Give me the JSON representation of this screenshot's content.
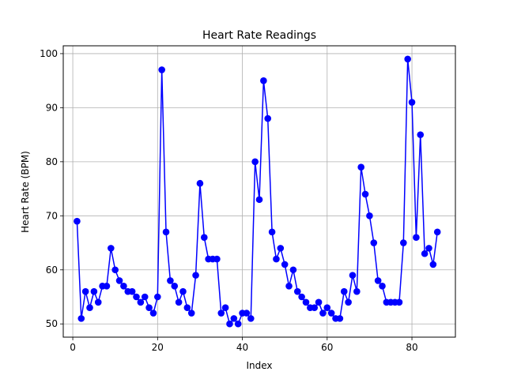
{
  "chart_data": {
    "type": "line",
    "title": "Heart Rate Readings",
    "xlabel": "Index",
    "ylabel": "Heart Rate (BPM)",
    "xlim": [
      -2.25,
      90.25
    ],
    "ylim": [
      47.55,
      101.45
    ],
    "xticks": [
      0,
      20,
      40,
      60,
      80
    ],
    "yticks": [
      50,
      60,
      70,
      80,
      90,
      100
    ],
    "grid": true,
    "line_color": "#0000ff",
    "marker": "circle",
    "series": [
      {
        "x": [
          1,
          2,
          3,
          4,
          5,
          6,
          7,
          8,
          9,
          10,
          11,
          12,
          13,
          14,
          15,
          16,
          17,
          18,
          19,
          20,
          21,
          22,
          23,
          24,
          25,
          26,
          27,
          28,
          29,
          30,
          31,
          32,
          33,
          34,
          35,
          36,
          37,
          38,
          39,
          40,
          41,
          42,
          43,
          44,
          45,
          46,
          47,
          48,
          49,
          50,
          51,
          52,
          53,
          54,
          55,
          56,
          57,
          58,
          59,
          60,
          61,
          62,
          63,
          64,
          65,
          66,
          67,
          68,
          69,
          70,
          71,
          72,
          73,
          74,
          75,
          76,
          77,
          78,
          79,
          80,
          81,
          82,
          83,
          84,
          85,
          86
        ],
        "values": [
          69,
          51,
          56,
          53,
          56,
          54,
          57,
          57,
          64,
          60,
          58,
          57,
          56,
          56,
          55,
          54,
          55,
          53,
          52,
          55,
          97,
          67,
          58,
          57,
          54,
          56,
          53,
          52,
          59,
          76,
          66,
          62,
          62,
          62,
          52,
          53,
          50,
          51,
          50,
          52,
          52,
          51,
          80,
          73,
          95,
          88,
          67,
          62,
          64,
          61,
          57,
          60,
          56,
          55,
          54,
          53,
          53,
          54,
          52,
          53,
          52,
          51,
          51,
          56,
          54,
          59,
          56,
          79,
          74,
          70,
          65,
          58,
          57,
          54,
          54,
          54,
          54,
          65,
          99,
          91,
          66,
          85,
          63,
          64,
          61,
          67
        ]
      }
    ]
  }
}
